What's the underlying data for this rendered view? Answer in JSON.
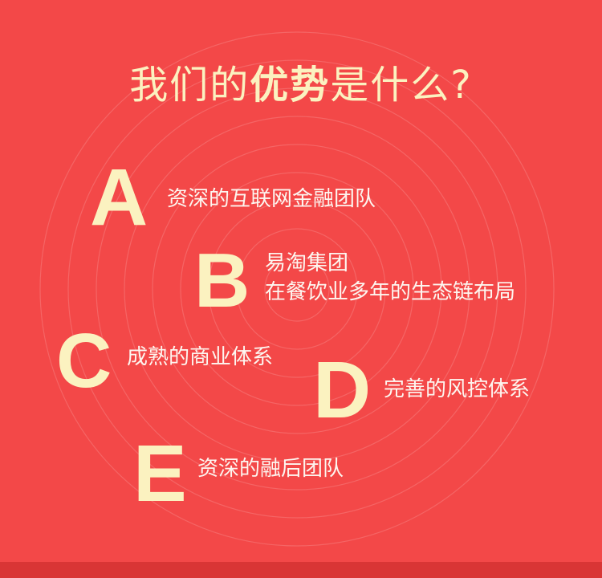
{
  "title": {
    "part1": "我们的",
    "bold": "优势",
    "part2": "是什么?"
  },
  "items": [
    {
      "letter": "A",
      "lines": [
        "资深的互联网金融团队"
      ]
    },
    {
      "letter": "B",
      "lines": [
        "易淘集团",
        "在餐饮业多年的生态链布局"
      ]
    },
    {
      "letter": "C",
      "lines": [
        "成熟的商业体系"
      ]
    },
    {
      "letter": "D",
      "lines": [
        "完善的风控体系"
      ]
    },
    {
      "letter": "E",
      "lines": [
        "资深的融后团队"
      ]
    }
  ],
  "colors": {
    "background": "#f34848",
    "accent": "#fbf2c0",
    "text": "#fdf6f0",
    "bottom_strip": "#d93535"
  }
}
